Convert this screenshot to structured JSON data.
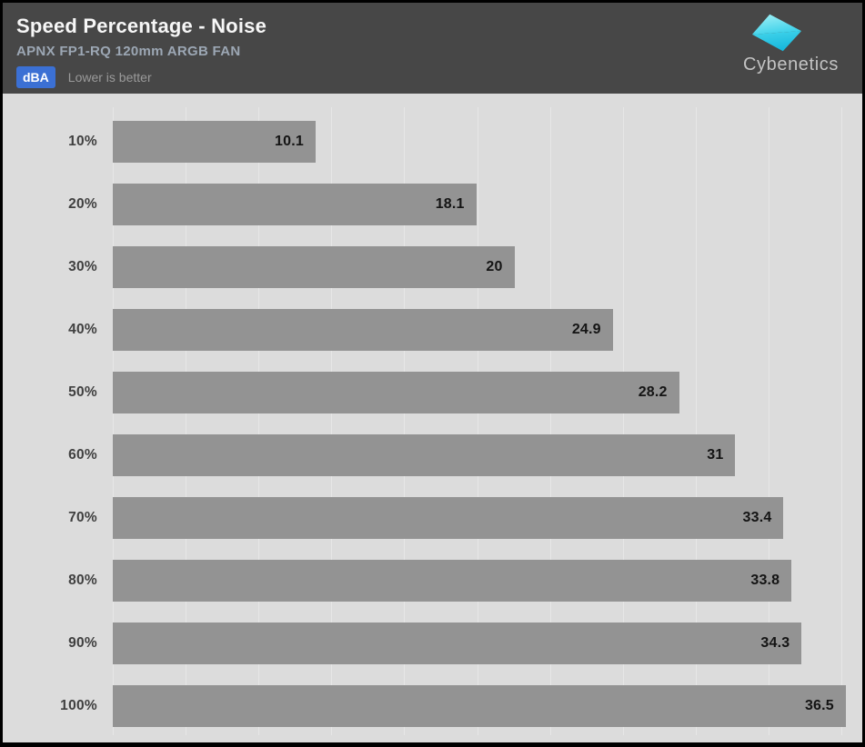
{
  "header": {
    "title": "Speed Percentage - Noise",
    "subtitle": "APNX FP1-RQ 120mm ARGB FAN",
    "unit_badge": "dBA",
    "note": "Lower is better",
    "logo_text": "Cybenetics"
  },
  "colors": {
    "header_bg": "#474747",
    "badge_blue": "#3b70d4",
    "chart_bg": "#dcdcdc",
    "gridline": "#e7e7e7",
    "bar_gray": "#939393",
    "logo_cyan_light": "#8feaf2",
    "logo_cyan_dark": "#17b8dc"
  },
  "chart_data": {
    "type": "bar",
    "orientation": "horizontal",
    "title": "Speed Percentage - Noise",
    "subtitle": "APNX FP1-RQ 120mm ARGB FAN",
    "unit": "dBA",
    "note": "Lower is better",
    "categories": [
      "10%",
      "20%",
      "30%",
      "40%",
      "50%",
      "60%",
      "70%",
      "80%",
      "90%",
      "100%"
    ],
    "values": [
      10.1,
      18.1,
      20,
      24.9,
      28.2,
      31,
      33.4,
      33.8,
      34.3,
      36.5
    ],
    "value_labels": [
      "10.1",
      "18.1",
      "20",
      "24.9",
      "28.2",
      "31",
      "33.4",
      "33.8",
      "34.3",
      "36.5"
    ],
    "xlabel": "",
    "ylabel": "Speed Percentage",
    "xlim": [
      0,
      36.6
    ],
    "grid": "vertical",
    "gridline_count": 11,
    "legend": "none"
  }
}
